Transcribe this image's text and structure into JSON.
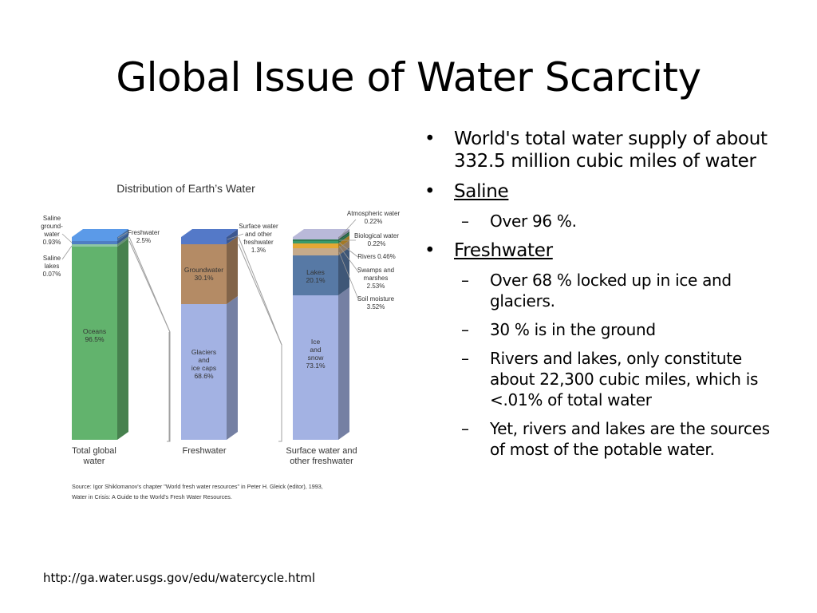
{
  "slide": {
    "title": "Global Issue of Water Scarcity",
    "url": "http://ga.water.usgs.gov/edu/watercycle.html"
  },
  "bullets": [
    {
      "level": 1,
      "text": "World's total water supply of about 332.5 million cubic miles of water",
      "underline": false
    },
    {
      "level": 1,
      "text": "Saline",
      "underline": true
    },
    {
      "level": 2,
      "text": "Over 96 %."
    },
    {
      "level": 1,
      "text": "Freshwater",
      "underline": true
    },
    {
      "level": 2,
      "text": "Over 68 % locked up in ice and glaciers."
    },
    {
      "level": 2,
      "text": "30 % is in the ground"
    },
    {
      "level": 2,
      "text": "Rivers and lakes, only constitute about 22,300 cubic miles, which is <.01% of total water"
    },
    {
      "level": 2,
      "text": "Yet, rivers and lakes are the sources of most of the potable water."
    }
  ],
  "chart_data": {
    "type": "bar",
    "stacked": true,
    "title": "Distribution of Earth’s Water",
    "source_note": [
      "Source: Igor Shiklomanov's chapter \"World fresh water resources\" in Peter H. Gleick (editor), 1993,",
      "Water in Crisis: A Guide to the World's Fresh Water Resources."
    ],
    "colors": {
      "oceans": "#62b36d",
      "saline_ground": "#4e7ec4",
      "saline_lakes": "#8fc6a4",
      "freshwater": "#5b9ae8",
      "glaciers": "#a3b2e3",
      "groundwater": "#b48b65",
      "surface": "#5479c8",
      "ice_snow": "#a3b2e3",
      "lakes": "#5779a5",
      "soil": "#c5aa8b",
      "swamps": "#e4a834",
      "rivers": "#3a9a6a",
      "biological": "#2d7d52",
      "atmospheric": "#b9b9d9"
    },
    "bars": [
      {
        "category": "Total global water",
        "segments": [
          {
            "name": "Oceans",
            "value": 96.5,
            "label": "Oceans\n96.5%"
          },
          {
            "name": "Saline lakes",
            "value": 0.07
          },
          {
            "name": "Saline ground-water",
            "value": 0.93
          },
          {
            "name": "Freshwater",
            "value": 2.5
          }
        ],
        "callouts": [
          {
            "text": "Saline\nground-\nwater\n0.93%"
          },
          {
            "text": "Saline\nlakes\n0.07%"
          },
          {
            "text": "Freshwater\n2.5%"
          }
        ]
      },
      {
        "category": "Freshwater",
        "segments": [
          {
            "name": "Glaciers and ice caps",
            "value": 68.6,
            "label": "Glaciers\nand\nice caps\n68.6%"
          },
          {
            "name": "Groundwater",
            "value": 30.1,
            "label": "Groundwater\n30.1%"
          },
          {
            "name": "Surface water and other freshwater",
            "value": 1.3
          }
        ],
        "callouts": [
          {
            "text": "Surface water\nand other\nfreshwater\n1.3%"
          }
        ]
      },
      {
        "category": "Surface water and other freshwater",
        "segments": [
          {
            "name": "Ice and snow",
            "value": 73.1,
            "label": "Ice\nand\nsnow\n73.1%"
          },
          {
            "name": "Lakes",
            "value": 20.1,
            "label": "Lakes\n20.1%"
          },
          {
            "name": "Soil moisture",
            "value": 3.52
          },
          {
            "name": "Swamps and marshes",
            "value": 2.53
          },
          {
            "name": "Rivers",
            "value": 0.46
          },
          {
            "name": "Biological water",
            "value": 0.22
          },
          {
            "name": "Atmospheric water",
            "value": 0.22
          }
        ],
        "callouts": [
          {
            "text": "Atmospheric water\n0.22%"
          },
          {
            "text": "Biological water\n0.22%"
          },
          {
            "text": "Rivers  0.46%"
          },
          {
            "text": "Swamps and\nmarshes\n2.53%"
          },
          {
            "text": "Soil moisture\n3.52%"
          }
        ]
      }
    ],
    "categories": [
      "Total global\nwater",
      "Freshwater",
      "Surface water and\nother freshwater"
    ]
  }
}
